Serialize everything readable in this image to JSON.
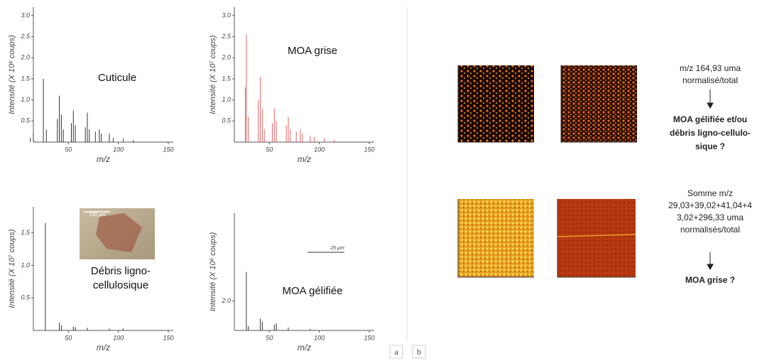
{
  "chart_data": [
    {
      "type": "stem",
      "title": "Cuticule",
      "x_label": "m/z",
      "y_label": "Intensité (X 10⁶ coups)",
      "color": "#333333",
      "x": [
        12,
        15,
        25,
        28,
        39,
        41,
        43,
        45,
        53,
        55,
        57,
        67,
        69,
        71,
        77,
        81,
        83,
        91,
        95,
        105,
        115
      ],
      "values": [
        0.1,
        0.2,
        1.5,
        0.3,
        0.55,
        1.1,
        0.65,
        0.3,
        0.45,
        0.75,
        0.4,
        0.35,
        0.7,
        0.3,
        0.25,
        0.3,
        0.2,
        0.2,
        0.1,
        0.08,
        0.05
      ],
      "xlim": [
        15,
        155
      ],
      "xticks": [
        50,
        100,
        150
      ],
      "ylim": [
        0,
        3.2
      ],
      "yticks": [
        0.5,
        {
          "value": 1,
          "label": "1.0"
        },
        1.5,
        {
          "value": 2,
          "label": "2.0"
        },
        2.5,
        {
          "value": 3,
          "label": "3.0"
        }
      ]
    },
    {
      "type": "stem",
      "title": "MOA grise",
      "x_label": "m/z",
      "y_label": "Intensité (X 10⁷ coups)",
      "color": "#e06666",
      "x": [
        26,
        27,
        29,
        39,
        41,
        43,
        45,
        53,
        55,
        57,
        67,
        69,
        71,
        77,
        81,
        83,
        91,
        95,
        105,
        115
      ],
      "values": [
        1.3,
        2.55,
        0.6,
        1.0,
        1.55,
        0.8,
        0.3,
        0.45,
        0.8,
        0.5,
        0.4,
        0.6,
        0.3,
        0.25,
        0.3,
        0.2,
        0.15,
        0.12,
        0.1,
        0.05
      ],
      "xlim": [
        15,
        155
      ],
      "xticks": [
        50,
        100,
        150
      ],
      "ylim": [
        0,
        3.2
      ],
      "yticks": [
        0.5,
        {
          "value": 1,
          "label": "1.0"
        },
        1.5,
        {
          "value": 2,
          "label": "2.0"
        },
        2.5,
        {
          "value": 3,
          "label": "3.0"
        }
      ]
    },
    {
      "type": "stem",
      "title": "Débris ligno-cellulosique",
      "x_label": "m/z",
      "y_label": "Intensité (X 10⁷ coups)",
      "color": "#333333",
      "inset_label": "100 µm",
      "x": [
        27,
        41,
        43,
        55,
        57,
        69,
        91,
        105
      ],
      "values": [
        1.65,
        0.12,
        0.08,
        0.06,
        0.05,
        0.04,
        0.03,
        0.03
      ],
      "xlim": [
        15,
        155
      ],
      "xticks": [
        50,
        100,
        150
      ],
      "ylim": [
        0,
        1.9
      ],
      "yticks": [
        0.5,
        {
          "value": 1,
          "label": "1.0"
        },
        1.5
      ]
    },
    {
      "type": "stem",
      "title": "MOA gélifiée",
      "x_label": "m/z",
      "y_label": "Intensité (X 10⁶ coups)",
      "color": "#333333",
      "scale_label": "25 µm",
      "x": [
        27,
        29,
        41,
        43,
        55,
        57,
        69,
        91
      ],
      "values": [
        4.0,
        0.3,
        0.8,
        0.6,
        0.4,
        0.5,
        0.2,
        0.1
      ],
      "xlim": [
        15,
        155
      ],
      "xticks": [
        50,
        100,
        150
      ],
      "ylim": [
        0,
        8
      ],
      "yticks": [
        {
          "value": 2,
          "label": "2.0"
        }
      ]
    }
  ],
  "panel_b": [
    {
      "top": [
        "m/z 164,93 uma",
        "normalisé/total"
      ],
      "bottom": [
        "MOA gélifiée et/ou",
        "débris ligno-cellulo-",
        "sique ?"
      ]
    },
    {
      "top": [
        "Somme m/z",
        "29,03+39,02+41,04+4",
        "3,02+296,33 uma",
        "normalisés/total"
      ],
      "bottom": [
        "MOA grise ?"
      ]
    }
  ],
  "panel_labels": [
    "a",
    "b"
  ]
}
